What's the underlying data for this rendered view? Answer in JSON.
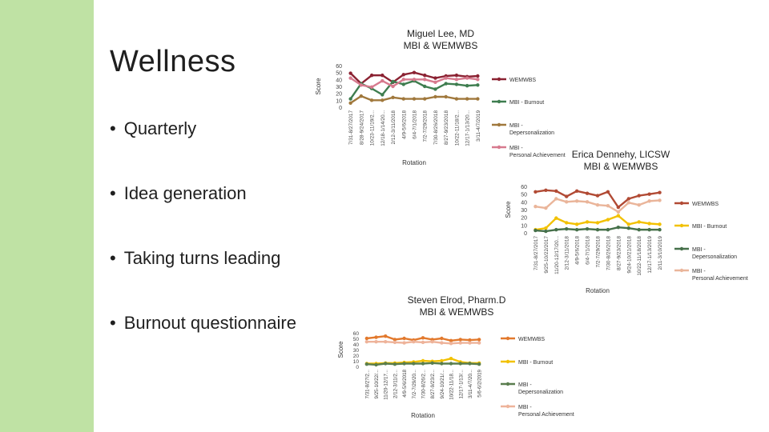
{
  "slide": {
    "title": "Wellness",
    "bullets": [
      "Quarterly",
      "Idea generation",
      "Taking turns leading",
      "Burnout questionnaire"
    ]
  },
  "colors": {
    "sidebar": "#bfe2a4",
    "wemwbs_1": "#8b2232",
    "burnout_1": "#3e7d4f",
    "depers_1": "#a0783c",
    "personal_1": "#d77a8e",
    "wemwbs_2": "#b14a34",
    "burnout_2": "#f2c100",
    "depers_2": "#46704a",
    "personal_2": "#eab59a",
    "wemwbs_3": "#e2792d",
    "burnout_3": "#f2c100",
    "depers_3": "#5a7e4e",
    "personal_3": "#eeb39a"
  },
  "chart_data": [
    {
      "type": "line",
      "title_lines": [
        "Miguel Lee, MD",
        "MBI & WEMWBS"
      ],
      "xlabel": "Rotation",
      "ylabel": "Score",
      "ylim": [
        0,
        60
      ],
      "yticks": [
        0,
        10,
        20,
        30,
        40,
        50,
        60
      ],
      "legend_position": "right",
      "categories": [
        "7/31-8/27/2017",
        "8/28-9/24/2017",
        "10/23-11/19/2...",
        "12/18-1/14/20...",
        "2/12-3/11/2018",
        "4/9-5/6/2018",
        "6/4-7/1/2018",
        "7/2-7/29/2018",
        "7/30-8/26/2018",
        "8/27-9/23/2018",
        "10/22-11/18/2...",
        "12/17-1/13/20...",
        "3/11-4/7/2019"
      ],
      "series": [
        {
          "name": "WEMWBS",
          "values": [
            49,
            34,
            46,
            46,
            36,
            47,
            50,
            46,
            42,
            45,
            46,
            44,
            45
          ]
        },
        {
          "name": "MBI - Burnout",
          "values": [
            12,
            34,
            27,
            18,
            37,
            33,
            38,
            30,
            26,
            34,
            33,
            31,
            32
          ]
        },
        {
          "name": "MBI - Depersonalization",
          "values": [
            6,
            16,
            10,
            10,
            14,
            12,
            12,
            12,
            15,
            15,
            12,
            12,
            12
          ]
        },
        {
          "name": "MBI - Personal Achievement",
          "values": [
            42,
            32,
            29,
            38,
            30,
            40,
            40,
            40,
            36,
            42,
            40,
            42,
            40
          ]
        }
      ]
    },
    {
      "type": "line",
      "title_lines": [
        "Erica Dennehy, LICSW",
        "MBI & WEMWBS"
      ],
      "xlabel": "Rotation",
      "ylabel": "Score",
      "ylim": [
        0,
        60
      ],
      "yticks": [
        0,
        10,
        20,
        30,
        40,
        50,
        60
      ],
      "legend_position": "right",
      "categories": [
        "7/31-8/27/2017",
        "9/25-10/22/2017",
        "11/20-12/17/20...",
        "2/12-3/11/2018",
        "4/9-5/6/2018",
        "6/4-7/1/2018",
        "7/2-7/29/2018",
        "7/30-8/26/2018",
        "8/27-9/23/2018",
        "9/24-10/21/2018",
        "10/22-11/18/2018",
        "12/17-1/13/2019",
        "2/11-3/10/2019"
      ],
      "series": [
        {
          "name": "WEMWBS",
          "values": [
            53,
            55,
            54,
            47,
            54,
            51,
            48,
            53,
            33,
            44,
            48,
            50,
            52
          ]
        },
        {
          "name": "MBI - Burnout",
          "values": [
            4,
            6,
            19,
            13,
            11,
            14,
            13,
            17,
            22,
            11,
            14,
            12,
            11
          ]
        },
        {
          "name": "MBI - Depersonalization",
          "values": [
            3,
            2,
            4,
            5,
            4,
            5,
            4,
            4,
            7,
            6,
            4,
            4,
            4
          ]
        },
        {
          "name": "MBI - Personal Achievement",
          "values": [
            34,
            32,
            44,
            40,
            41,
            40,
            36,
            35,
            27,
            39,
            36,
            41,
            42
          ]
        }
      ]
    },
    {
      "type": "line",
      "title_lines": [
        "Steven Elrod, Pharm.D",
        "MBI & WEMWBS"
      ],
      "xlabel": "Rotation",
      "ylabel": "Score",
      "ylim": [
        0,
        60
      ],
      "yticks": [
        0,
        10,
        20,
        30,
        40,
        50,
        60
      ],
      "legend_position": "right",
      "categories": [
        "7/31-8/27/2...",
        "9/25-10/22/...",
        "11/20-12/17...",
        "2/12-3/11/2...",
        "4/9-5/6/2018",
        "7/2-7/29/20...",
        "7/30-8/26/2...",
        "8/27-9/23/2...",
        "9/24-10/21/...",
        "10/22-11/18...",
        "12/17-1/13/...",
        "3/11-4/7/20...",
        "5/6-6/2/2019"
      ],
      "series": [
        {
          "name": "WEMWBS",
          "values": [
            50,
            52,
            54,
            48,
            50,
            47,
            51,
            48,
            50,
            46,
            48,
            47,
            48
          ]
        },
        {
          "name": "MBI - Burnout",
          "values": [
            5,
            5,
            6,
            6,
            7,
            8,
            10,
            9,
            10,
            14,
            8,
            6,
            6
          ]
        },
        {
          "name": "MBI - Depersonalization",
          "values": [
            4,
            3,
            5,
            4,
            5,
            5,
            5,
            6,
            5,
            5,
            5,
            5,
            4
          ]
        },
        {
          "name": "MBI - Personal Achievement",
          "values": [
            44,
            44,
            44,
            43,
            42,
            44,
            43,
            44,
            42,
            41,
            42,
            42,
            42
          ]
        }
      ]
    }
  ]
}
